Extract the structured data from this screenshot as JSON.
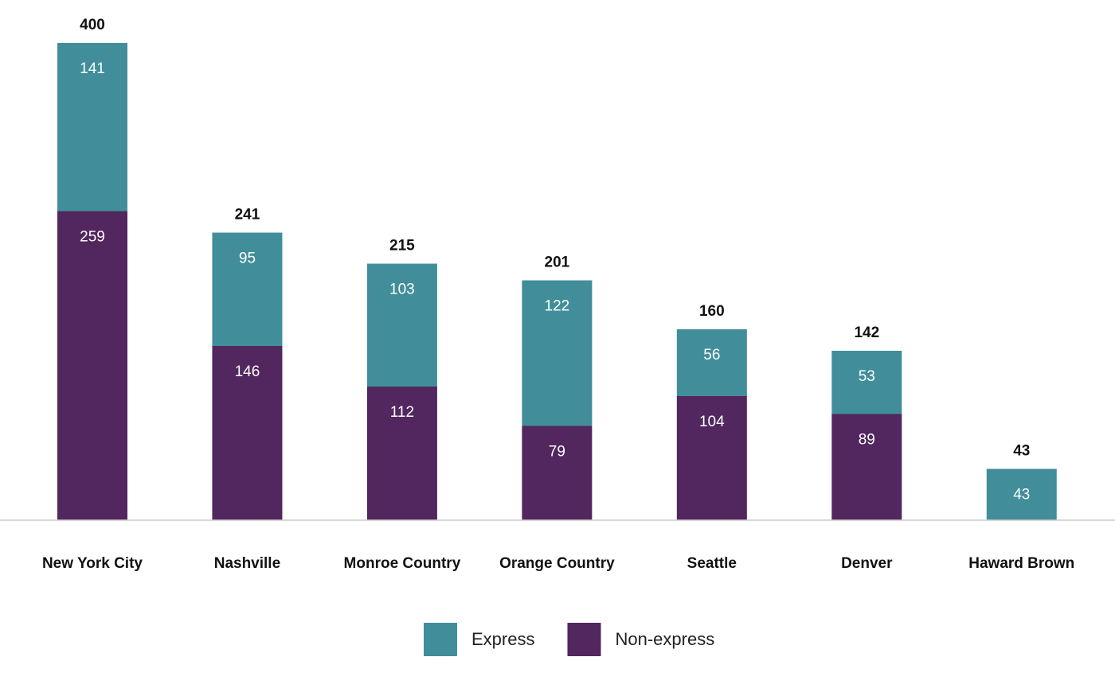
{
  "chart_data": {
    "type": "stacked_bar",
    "categories": [
      "New York City",
      "Nashville",
      "Monroe Country",
      "Orange Country",
      "Seattle",
      "Denver",
      "Haward Brown"
    ],
    "series": [
      {
        "name": "Non-express",
        "color": "#52265e",
        "values": [
          259,
          146,
          112,
          79,
          104,
          89,
          0
        ]
      },
      {
        "name": "Express",
        "color": "#418e9a",
        "values": [
          141,
          95,
          103,
          122,
          56,
          53,
          43
        ]
      }
    ],
    "totals": [
      400,
      241,
      215,
      201,
      160,
      142,
      43
    ],
    "ylim": [
      0,
      400
    ],
    "legend": "bottom"
  }
}
